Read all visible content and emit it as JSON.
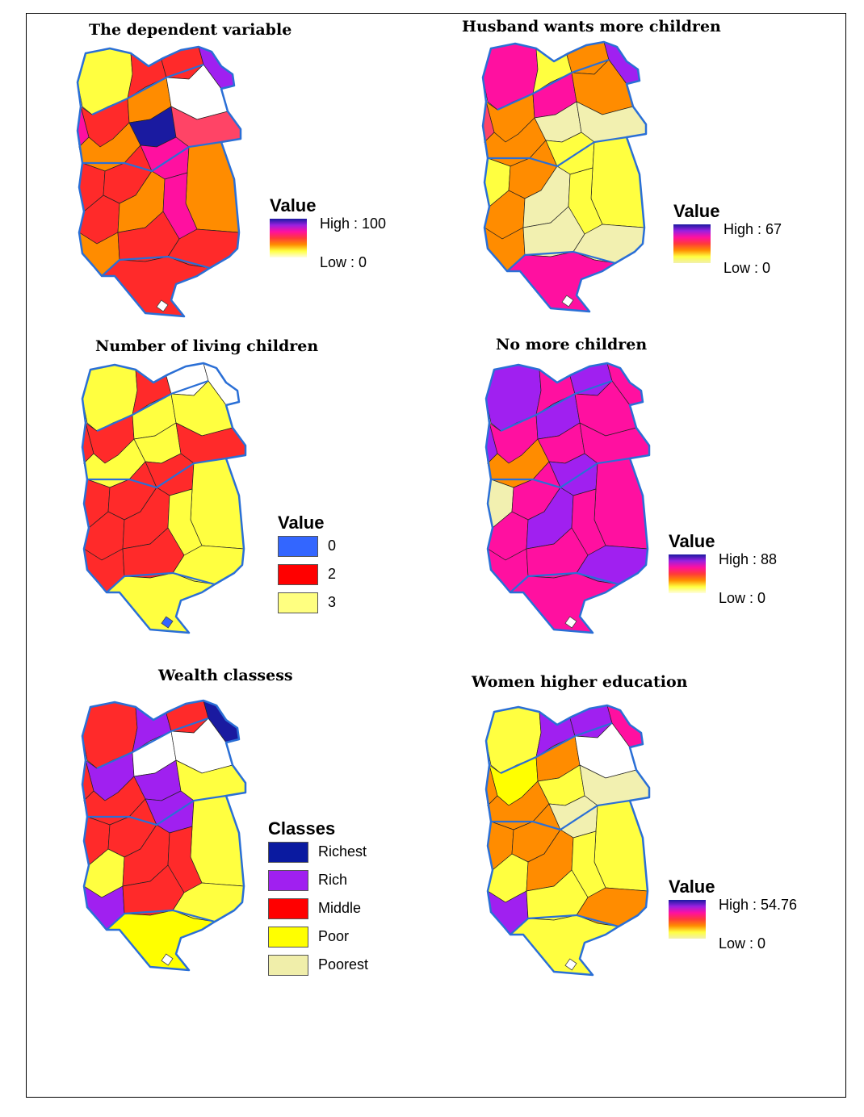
{
  "panels": [
    {
      "title": "The dependent variable",
      "legend": {
        "type": "ramp",
        "heading": "Value",
        "high": "High : 100",
        "low": "Low : 0",
        "ramp": "plasma"
      }
    },
    {
      "title": "Husband wants more children",
      "legend": {
        "type": "ramp",
        "heading": "Value",
        "high": "High : 67",
        "low": "Low : 0",
        "ramp": "plasma-pale"
      }
    },
    {
      "title": "Number of living children",
      "legend": {
        "type": "classes",
        "heading": "Value",
        "items": [
          {
            "label": "0",
            "color": "#3366ff"
          },
          {
            "label": "2",
            "color": "#ff0000"
          },
          {
            "label": "3",
            "color": "#ffff80"
          }
        ]
      }
    },
    {
      "title": "No more children",
      "legend": {
        "type": "ramp",
        "heading": "Value",
        "high": "High : 88",
        "low": "Low : 0",
        "ramp": "plasma"
      }
    },
    {
      "title": "Wealth classess",
      "legend": {
        "type": "classes",
        "heading": "Classes",
        "items": [
          {
            "label": "Richest",
            "color": "#0a1aa0"
          },
          {
            "label": "Rich",
            "color": "#a020f0"
          },
          {
            "label": "Middle",
            "color": "#ff0000"
          },
          {
            "label": "Poor",
            "color": "#ffff00"
          },
          {
            "label": "Poorest",
            "color": "#f0eeaa"
          }
        ]
      }
    },
    {
      "title": "Women higher education",
      "legend": {
        "type": "ramp",
        "heading": "Value",
        "high": "High : 54.76",
        "low": "Low : 0",
        "ramp": "plasma-pale"
      }
    }
  ],
  "colors": {
    "boundary": "#2a6fd6",
    "district_line": "#222222",
    "ramp_stops": [
      "#1a1aa0",
      "#9a20e0",
      "#ff10a0",
      "#ff3a3a",
      "#ff8c00",
      "#ffff40",
      "#f2f0b0"
    ]
  }
}
